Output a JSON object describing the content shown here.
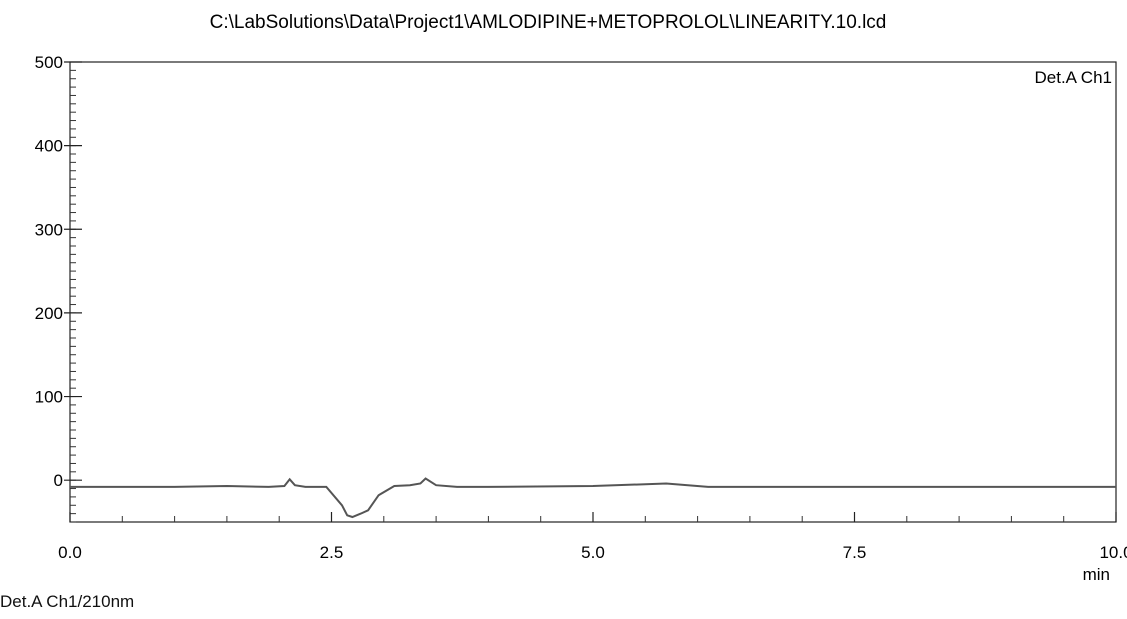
{
  "chart_data": {
    "type": "line",
    "title": "C:\\LabSolutions\\Data\\Project1\\AMLODIPINE+METOPROLOL\\LINEARITY.10.lcd",
    "xlabel": "min",
    "ylabel": "",
    "xlim": [
      0.0,
      10.0
    ],
    "ylim": [
      -50,
      500
    ],
    "x_ticks": [
      "0.0",
      "2.5",
      "5.0",
      "7.5",
      "10.0"
    ],
    "y_ticks": [
      "0",
      "100",
      "200",
      "300",
      "400",
      "500"
    ],
    "grid": false,
    "legend_position": "top-right",
    "series": [
      {
        "name": "Det.A Ch1",
        "x": [
          0.0,
          0.5,
          1.0,
          1.5,
          1.9,
          2.05,
          2.1,
          2.15,
          2.25,
          2.45,
          2.6,
          2.65,
          2.7,
          2.78,
          2.85,
          2.95,
          3.1,
          3.25,
          3.35,
          3.4,
          3.5,
          3.7,
          4.0,
          5.0,
          5.7,
          6.1,
          7.0,
          8.0,
          9.0,
          10.0
        ],
        "y": [
          -8,
          -8,
          -8,
          -7,
          -8,
          -7,
          1,
          -6,
          -8,
          -8,
          -30,
          -42,
          -44,
          -40,
          -36,
          -18,
          -7,
          -6,
          -4,
          2,
          -6,
          -8,
          -8,
          -7,
          -4,
          -8,
          -8,
          -8,
          -8,
          -8
        ]
      }
    ]
  },
  "footer_label": "Det.A Ch1/210nm"
}
